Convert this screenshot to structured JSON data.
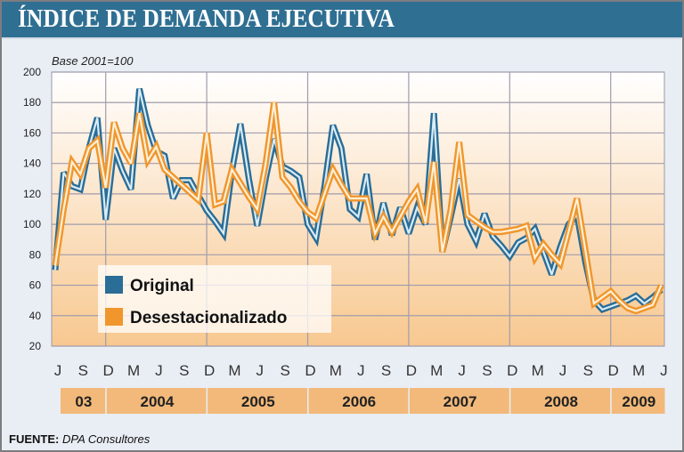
{
  "header": {
    "title": "ÍNDICE DE DEMANDA EJECUTIVA"
  },
  "chart_data": {
    "type": "line",
    "title": "ÍNDICE DE DEMANDA EJECUTIVA",
    "subtitle": "Base 2001=100",
    "ylim": [
      20,
      200
    ],
    "yticks": [
      200,
      180,
      160,
      140,
      120,
      100,
      80,
      60,
      40,
      20
    ],
    "x_start": "2003-06",
    "x_end": "2009-06",
    "x_frequency": "monthly",
    "month_ticks": [
      "J",
      "S",
      "D",
      "M",
      "J",
      "S",
      "D",
      "M",
      "J",
      "S",
      "D",
      "M",
      "J",
      "S",
      "D",
      "M",
      "J",
      "S",
      "D",
      "M",
      "J",
      "S",
      "D",
      "M",
      "J"
    ],
    "year_labels": [
      "03",
      "2004",
      "2005",
      "2006",
      "2007",
      "2008",
      "2009"
    ],
    "grid": true,
    "legend_placement": "bottom-left",
    "series": [
      {
        "name": "Original",
        "color": "#2a6d96",
        "values": [
          70,
          134,
          125,
          123,
          150,
          170,
          103,
          150,
          135,
          123,
          189,
          165,
          148,
          145,
          117,
          129,
          129,
          119,
          109,
          102,
          94,
          135,
          166,
          130,
          99,
          130,
          156,
          138,
          135,
          131,
          100,
          91,
          125,
          165,
          150,
          110,
          105,
          133,
          90,
          114,
          93,
          111,
          94,
          111,
          100,
          173,
          82,
          105,
          130,
          100,
          89,
          107,
          92,
          86,
          79,
          88,
          91,
          97,
          82,
          67,
          85,
          100,
          106,
          75,
          50,
          44,
          46,
          48,
          50,
          53,
          48,
          52,
          57
        ]
      },
      {
        "name": "Desestacionalizado",
        "color": "#f0962c",
        "values": [
          73,
          110,
          141,
          133,
          150,
          155,
          124,
          167,
          150,
          140,
          173,
          142,
          151,
          136,
          131,
          126,
          121,
          116,
          160,
          113,
          115,
          136,
          127,
          118,
          110,
          140,
          180,
          131,
          124,
          115,
          108,
          104,
          120,
          136,
          126,
          117,
          117,
          117,
          94,
          105,
          95,
          105,
          115,
          123,
          101,
          141,
          82,
          110,
          154,
          106,
          102,
          98,
          95,
          95,
          96,
          97,
          99,
          78,
          87,
          80,
          74,
          95,
          117,
          83,
          48,
          52,
          56,
          50,
          45,
          43,
          45,
          47,
          60
        ]
      }
    ]
  },
  "footer": {
    "source_label": "FUENTE:",
    "source_value": "DPA Consultores"
  }
}
